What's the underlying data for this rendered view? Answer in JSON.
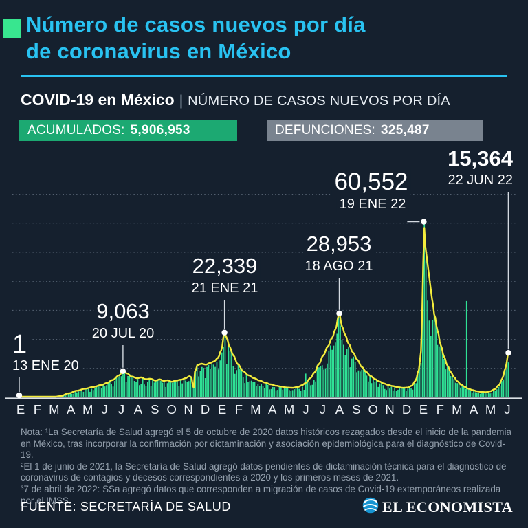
{
  "header": {
    "title_line1": "Número de casos nuevos por día",
    "title_line2": "de coronavirus en México",
    "subtitle_bold": "COVID-19 en México",
    "subtitle_separator": "|",
    "subtitle_rest": "NÚMERO DE CASOS NUEVOS POR DÍA",
    "badge_accumulated_label": "ACUMULADOS:",
    "badge_accumulated_value": "5,906,953",
    "badge_deaths_label": "DEFUNCIONES:",
    "badge_deaths_value": "325,487"
  },
  "colors": {
    "background": "#15202e",
    "accent_cyan": "#29c2f1",
    "accent_green_square": "#38e68f",
    "bar_green": "#2fe195",
    "line_yellow": "#f3eb3c",
    "badge_green": "#1ca972",
    "badge_gray": "#79838f",
    "grid_gray": "#5d6a7a"
  },
  "chart_data": {
    "type": "bar+line",
    "title": "COVID-19 en México — número de casos nuevos por día",
    "x_start_date": "13 ENE 20",
    "x_end_date": "22 JUN 22",
    "x_labels": [
      "E",
      "F",
      "M",
      "A",
      "M",
      "J",
      "J",
      "A",
      "S",
      "O",
      "N",
      "D",
      "E",
      "F",
      "M",
      "A",
      "M",
      "J",
      "J",
      "A",
      "S",
      "O",
      "N",
      "D",
      "E",
      "F",
      "M",
      "A",
      "M",
      "J"
    ],
    "ylim": [
      0,
      73000
    ],
    "gridlines": [
      10000,
      20000,
      30000,
      40000,
      50000,
      60000,
      70000
    ],
    "grid": "dotted-horizontal",
    "legend": "none",
    "total_days": 891,
    "envelope_points": [
      [
        0,
        1
      ],
      [
        45,
        10
      ],
      [
        61,
        100
      ],
      [
        75,
        450
      ],
      [
        90,
        1400
      ],
      [
        105,
        2300
      ],
      [
        120,
        3000
      ],
      [
        135,
        3600
      ],
      [
        150,
        4300
      ],
      [
        160,
        5000
      ],
      [
        170,
        6000
      ],
      [
        182,
        7600
      ],
      [
        189,
        9063
      ],
      [
        196,
        8300
      ],
      [
        205,
        7200
      ],
      [
        215,
        6600
      ],
      [
        222,
        6900
      ],
      [
        230,
        6300
      ],
      [
        240,
        6400
      ],
      [
        248,
        5800
      ],
      [
        256,
        6200
      ],
      [
        263,
        5700
      ],
      [
        270,
        5900
      ],
      [
        278,
        5400
      ],
      [
        285,
        5800
      ],
      [
        295,
        6100
      ],
      [
        303,
        6600
      ],
      [
        310,
        7300
      ],
      [
        315,
        6800
      ],
      [
        317,
        1600
      ],
      [
        320,
        8800
      ],
      [
        325,
        11200
      ],
      [
        332,
        11600
      ],
      [
        340,
        11300
      ],
      [
        348,
        11900
      ],
      [
        355,
        12400
      ],
      [
        362,
        13600
      ],
      [
        368,
        16200
      ],
      [
        374,
        22339
      ],
      [
        378,
        20500
      ],
      [
        383,
        17500
      ],
      [
        390,
        14500
      ],
      [
        398,
        11500
      ],
      [
        408,
        9000
      ],
      [
        418,
        7600
      ],
      [
        428,
        6600
      ],
      [
        438,
        5800
      ],
      [
        448,
        5100
      ],
      [
        458,
        4500
      ],
      [
        468,
        4000
      ],
      [
        478,
        3700
      ],
      [
        488,
        3400
      ],
      [
        498,
        3300
      ],
      [
        508,
        3600
      ],
      [
        515,
        4200
      ],
      [
        522,
        5000
      ],
      [
        530,
        6600
      ],
      [
        538,
        8600
      ],
      [
        546,
        11500
      ],
      [
        554,
        14500
      ],
      [
        562,
        17500
      ],
      [
        570,
        20500
      ],
      [
        576,
        23500
      ],
      [
        583,
        28953
      ],
      [
        588,
        24500
      ],
      [
        594,
        21500
      ],
      [
        600,
        18500
      ],
      [
        608,
        15500
      ],
      [
        616,
        13000
      ],
      [
        624,
        10500
      ],
      [
        632,
        8800
      ],
      [
        640,
        7400
      ],
      [
        648,
        6300
      ],
      [
        656,
        5500
      ],
      [
        664,
        4800
      ],
      [
        672,
        4300
      ],
      [
        680,
        3900
      ],
      [
        690,
        3500
      ],
      [
        700,
        3300
      ],
      [
        708,
        3400
      ],
      [
        715,
        4000
      ],
      [
        722,
        5800
      ],
      [
        728,
        9500
      ],
      [
        732,
        16000
      ],
      [
        735,
        32000
      ],
      [
        737,
        60552
      ],
      [
        740,
        52000
      ],
      [
        744,
        46000
      ],
      [
        748,
        40000
      ],
      [
        752,
        34000
      ],
      [
        757,
        28000
      ],
      [
        762,
        23000
      ],
      [
        768,
        18000
      ],
      [
        774,
        14000
      ],
      [
        780,
        11000
      ],
      [
        786,
        8800
      ],
      [
        792,
        7000
      ],
      [
        798,
        5600
      ],
      [
        805,
        4400
      ],
      [
        812,
        3600
      ],
      [
        818,
        3000
      ],
      [
        826,
        2500
      ],
      [
        834,
        2100
      ],
      [
        842,
        1900
      ],
      [
        850,
        1800
      ],
      [
        858,
        2100
      ],
      [
        866,
        2800
      ],
      [
        874,
        4200
      ],
      [
        880,
        6500
      ],
      [
        885,
        9500
      ],
      [
        888,
        12000
      ],
      [
        891,
        15364
      ]
    ],
    "spikes": [
      {
        "day": 522,
        "value": 8200
      },
      {
        "day": 815,
        "value": 33200
      }
    ],
    "annotations": [
      {
        "value": "1",
        "date": "13 ENE 20",
        "day": 0,
        "cases": 1
      },
      {
        "value": "9,063",
        "date": "20 JUL 20",
        "day": 189,
        "cases": 9063
      },
      {
        "value": "22,339",
        "date": "21 ENE 21",
        "day": 374,
        "cases": 22339
      },
      {
        "value": "28,953",
        "date": "18 AGO 21",
        "day": 583,
        "cases": 28953
      },
      {
        "value": "60,552",
        "date": "19 ENE 22",
        "day": 737,
        "cases": 60552
      },
      {
        "value": "15,364",
        "date": "22 JUN 22",
        "day": 891,
        "cases": 15364
      }
    ]
  },
  "notes": {
    "lines": [
      "Nota: ¹La Secretaría de Salud agregó el 5 de octubre de 2020 datos históricos rezagados desde el inicio de la pandemia en México, tras incorporar la confirmación por dictaminación y asociación epidemiológica para el diagnóstico de Covid-19.",
      "²El 1 de junio de 2021, la Secretaría de Salud agregó datos pendientes de dictaminación técnica para el diagnóstico de coronavirus de contagios y decesos correspondientes a 2020 y los primeros meses de 2021.",
      "³7 de abril de 2022: SSa agregó datos que corresponden a migración de casos de Covid-19 extemporáneos realizada por el IMSS."
    ]
  },
  "footer": {
    "source": "FUENTE: SECRETARÍA DE SALUD",
    "brand": "EL ECONOMISTA"
  }
}
